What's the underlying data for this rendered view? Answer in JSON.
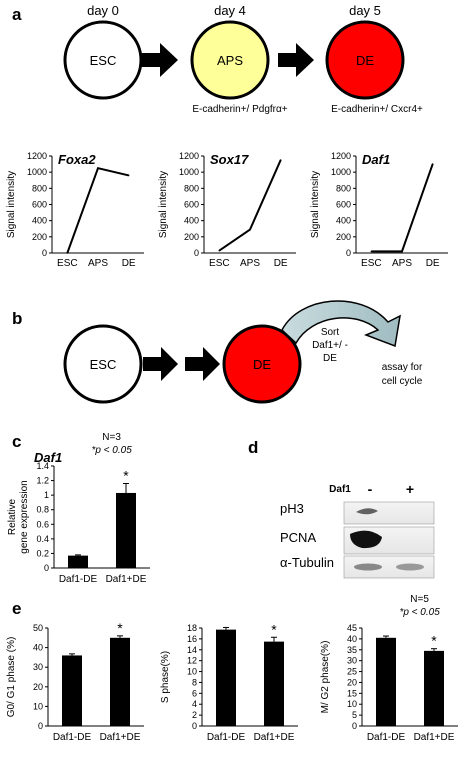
{
  "panel_a": {
    "letter": "a",
    "days": [
      "day 0",
      "day 4",
      "day 5"
    ],
    "cells": [
      {
        "label": "ESC",
        "color": "#ffffff"
      },
      {
        "label": "APS",
        "color": "#ffff99"
      },
      {
        "label": "DE",
        "color": "#ff0000"
      }
    ],
    "markers": [
      "E-cadherin+/ Pdgfrα+",
      "E-cadherin+/ Cxcr4+"
    ]
  },
  "panel_b": {
    "letter": "b",
    "cells": [
      {
        "label": "ESC",
        "color": "#ffffff"
      },
      {
        "label": "DE",
        "color": "#ff0000"
      }
    ],
    "sort_line1": "Sort",
    "sort_line2": "Daf1+/ -",
    "sort_line3": "DE",
    "assay_line1": "assay for",
    "assay_line2": "cell cycle"
  },
  "panel_c": {
    "letter": "c"
  },
  "panel_d": {
    "letter": "d",
    "header_label": "Daf1",
    "lane_labels": [
      "-",
      "+"
    ],
    "rows": [
      "pH3",
      "PCNA",
      "α-Tubulin"
    ]
  },
  "panel_e": {
    "letter": "e"
  },
  "chart_data": [
    {
      "type": "line",
      "title": "Foxa2",
      "ylabel": "Signal intensity",
      "categories": [
        "ESC",
        "APS",
        "DE"
      ],
      "values": [
        0,
        1050,
        960
      ],
      "ylim": [
        0,
        1200
      ],
      "yticks": [
        0,
        200,
        400,
        600,
        800,
        1000,
        1200
      ]
    },
    {
      "type": "line",
      "title": "Sox17",
      "ylabel": "Signal intensity",
      "categories": [
        "ESC",
        "APS",
        "DE"
      ],
      "values": [
        30,
        290,
        1150
      ],
      "ylim": [
        0,
        1200
      ],
      "yticks": [
        0,
        200,
        400,
        600,
        800,
        1000,
        1200
      ]
    },
    {
      "type": "line",
      "title": "Daf1",
      "ylabel": "Signal intensity",
      "categories": [
        "ESC",
        "APS",
        "DE"
      ],
      "values": [
        20,
        20,
        1100
      ],
      "ylim": [
        0,
        1200
      ],
      "yticks": [
        0,
        200,
        400,
        600,
        800,
        1000,
        1200
      ]
    },
    {
      "type": "bar",
      "title": "Daf1",
      "ylabel_lines": [
        "Relative",
        "gene expression"
      ],
      "categories": [
        "Daf1-DE",
        "Daf1+DE"
      ],
      "values": [
        0.17,
        1.03
      ],
      "errors": [
        0.01,
        0.13
      ],
      "ylim": [
        0,
        1.4
      ],
      "yticks": [
        "0",
        "0.2",
        "0.4",
        "0.6",
        "0.8",
        "1",
        "1.2",
        "1.4"
      ],
      "annotation": "N=3",
      "pvalue": "*p < 0.05",
      "star": "*"
    },
    {
      "type": "bar",
      "ylabel": "G0/ G1 phase (%)",
      "categories": [
        "Daf1-DE",
        "Daf1+DE"
      ],
      "values": [
        36,
        45
      ],
      "errors": [
        0.8,
        1.0
      ],
      "ylim": [
        0,
        50
      ],
      "yticks": [
        0,
        10,
        20,
        30,
        40,
        50
      ],
      "star": "*"
    },
    {
      "type": "bar",
      "ylabel": "S phase(%)",
      "categories": [
        "Daf1-DE",
        "Daf1+DE"
      ],
      "values": [
        17.7,
        15.5
      ],
      "errors": [
        0.4,
        0.8
      ],
      "ylim": [
        0,
        18
      ],
      "yticks": [
        0,
        2,
        4,
        6,
        8,
        10,
        12,
        14,
        16,
        18
      ],
      "star": "*"
    },
    {
      "type": "bar",
      "ylabel": "M/ G2 phase(%)",
      "categories": [
        "Daf1-DE",
        "Daf1+DE"
      ],
      "values": [
        40.5,
        34.5
      ],
      "errors": [
        0.8,
        1.0
      ],
      "ylim": [
        0,
        45
      ],
      "yticks": [
        0,
        5,
        10,
        15,
        20,
        25,
        30,
        35,
        40,
        45
      ],
      "annotation": "N=5",
      "pvalue": "*p < 0.05",
      "star": "*"
    }
  ]
}
